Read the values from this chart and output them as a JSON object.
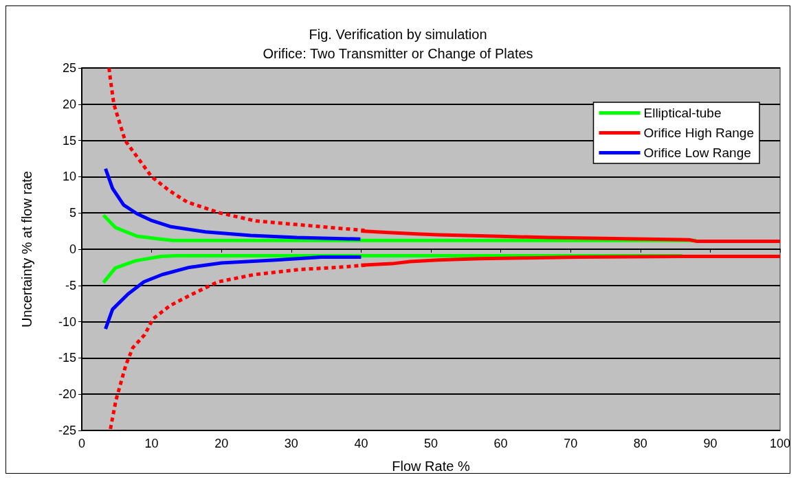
{
  "chart_data": {
    "type": "line",
    "title": "Fig. Verification by simulation",
    "subtitle": "Orifice: Two Transmitter or Change of Plates",
    "xlabel": "Flow Rate %",
    "ylabel": "Uncertainty % at flow rate",
    "xlim": [
      0,
      100
    ],
    "xticks": [
      0,
      10,
      20,
      30,
      40,
      50,
      60,
      70,
      80,
      90,
      100
    ],
    "ylim": [
      -25,
      25
    ],
    "yticks": [
      -25,
      -20,
      -15,
      -10,
      -5,
      0,
      5,
      10,
      15,
      20,
      25
    ],
    "grid": "y",
    "legend": "top right",
    "marker": "none",
    "series": [
      {
        "name": "Elliptical-tube",
        "color": "#00ff00",
        "line_style": "solid",
        "x": [
          3.1,
          4.8,
          7.9,
          11.2,
          13.1,
          20,
          30,
          40,
          50,
          60,
          70,
          80,
          88
        ],
        "values": [
          4.7,
          3.0,
          1.8,
          1.4,
          1.2,
          1.2,
          1.2,
          1.2,
          1.2,
          1.2,
          1.2,
          1.2,
          1.2
        ]
      },
      {
        "color": "#00ff00",
        "line_style": "solid",
        "x": [
          3.1,
          4.8,
          7.7,
          11.3,
          13.6,
          20,
          30,
          40,
          50,
          60,
          70,
          80,
          86
        ],
        "values": [
          -4.6,
          -2.6,
          -1.6,
          -1.0,
          -0.9,
          -0.9,
          -0.9,
          -0.9,
          -0.9,
          -0.9,
          -0.9,
          -0.9,
          -0.9
        ]
      },
      {
        "name": "Orifice High Range",
        "color": "#ff0000",
        "line_style": "solid",
        "x": [
          40,
          44,
          48,
          51,
          59,
          67,
          87,
          88,
          100
        ],
        "values": [
          2.5,
          2.3,
          2.1,
          2.0,
          1.8,
          1.6,
          1.3,
          1.1,
          1.1
        ]
      },
      {
        "color": "#ff0000",
        "line_style": "solid",
        "x": [
          40,
          44.4,
          47,
          51,
          57,
          64,
          71,
          86,
          100
        ],
        "values": [
          -2.2,
          -2.0,
          -1.7,
          -1.5,
          -1.3,
          -1.2,
          -1.1,
          -1.0,
          -1.0
        ]
      },
      {
        "color": "#ff0000",
        "line_style": "dashed",
        "x": [
          3.9,
          4.1,
          4.6,
          6.2,
          10,
          12.5,
          15.1,
          19.8,
          24.9,
          30.8,
          36.6,
          40.5
        ],
        "values": [
          25,
          23.4,
          20,
          15,
          10,
          8.1,
          6.5,
          5,
          3.9,
          3.4,
          2.9,
          2.6
        ]
      },
      {
        "color": "#ff0000",
        "line_style": "dashed",
        "x": [
          4.1,
          4.9,
          5.6,
          6.3,
          7.3,
          9.0,
          10.2,
          12.6,
          15.6,
          19.5,
          24.7,
          31.2,
          36.7,
          40.6
        ],
        "values": [
          -24.8,
          -20.8,
          -18.4,
          -16.0,
          -13.6,
          -11.8,
          -9.6,
          -7.8,
          -6.3,
          -4.5,
          -3.5,
          -2.8,
          -2.5,
          -2.2
        ]
      },
      {
        "name": "Orifice Low Range",
        "color": "#0000ff",
        "line_style": "solid",
        "x": [
          3.4,
          4.4,
          6.0,
          7.9,
          9.9,
          12.8,
          17.7,
          24.2,
          30.8,
          39.9
        ],
        "values": [
          11.1,
          8.4,
          6.1,
          4.9,
          4.0,
          3.1,
          2.4,
          1.9,
          1.6,
          1.4
        ]
      },
      {
        "color": "#0000ff",
        "line_style": "solid",
        "x": [
          3.4,
          4.4,
          6.6,
          8.9,
          11.5,
          15.4,
          20,
          27.8,
          34.3,
          40
        ],
        "values": [
          -11.0,
          -8.3,
          -6.2,
          -4.5,
          -3.5,
          -2.5,
          -1.9,
          -1.5,
          -1.1,
          -1.1
        ]
      }
    ]
  }
}
